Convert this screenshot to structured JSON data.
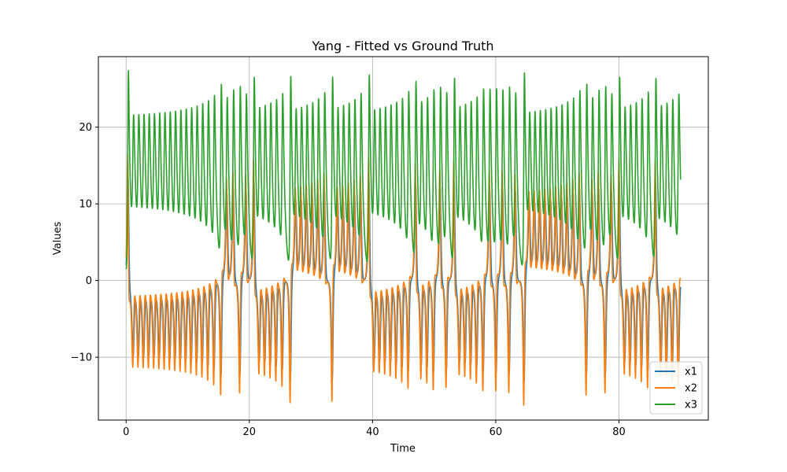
{
  "chart_data": {
    "type": "line",
    "title": "Yang - Fitted vs Ground Truth",
    "xlabel": "Time",
    "ylabel": "Values",
    "xlim": [
      -4.5,
      94.5
    ],
    "ylim": [
      -18.2,
      29.2
    ],
    "xticks": [
      0,
      20,
      40,
      60,
      80
    ],
    "yticks": [
      -10,
      0,
      10,
      20
    ],
    "grid": true,
    "legend": "bottom-right",
    "t_end": 90,
    "series": [
      {
        "name": "x1",
        "color": "#1f77b4"
      },
      {
        "name": "x2",
        "color": "#ff7f0e"
      },
      {
        "name": "x3",
        "color": "#2ca02c"
      }
    ]
  }
}
